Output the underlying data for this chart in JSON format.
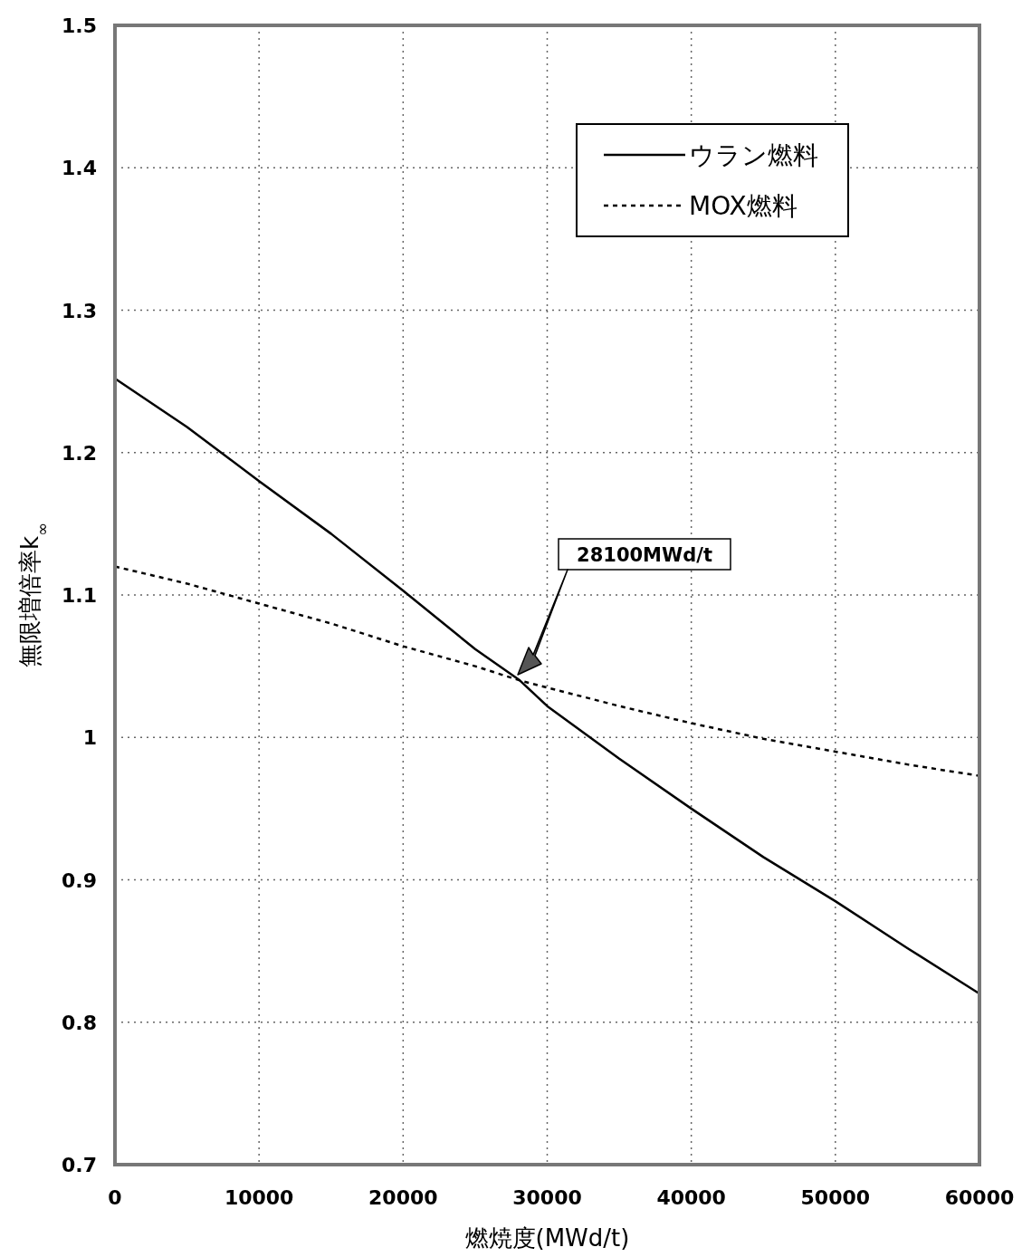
{
  "chart_data": {
    "type": "line",
    "xlabel": "燃焼度(MWd/t)",
    "ylabel": "無限増倍率k$_{∞}$",
    "xlim": [
      0,
      60000
    ],
    "ylim": [
      0.7,
      1.5
    ],
    "xticks": [
      0,
      10000,
      20000,
      30000,
      40000,
      50000,
      60000
    ],
    "yticks": [
      0.7,
      0.8,
      0.9,
      1,
      1.1,
      1.2,
      1.3,
      1.4,
      1.5
    ],
    "grid": true,
    "legend": "top right",
    "annotations": [
      "28100MWd/t"
    ],
    "series": [
      {
        "name": "ウラン燃料",
        "color": "#000000",
        "line_style": "solid",
        "x": [
          0,
          5000,
          10000,
          15000,
          20000,
          25000,
          28100,
          30000,
          35000,
          40000,
          45000,
          50000,
          55000,
          60000
        ],
        "values": [
          1.252,
          1.218,
          1.18,
          1.143,
          1.103,
          1.062,
          1.04,
          1.022,
          0.985,
          0.95,
          0.916,
          0.885,
          0.852,
          0.82
        ]
      },
      {
        "name": "MOX燃料",
        "color": "#000000",
        "line_style": "dashed",
        "x": [
          0,
          5000,
          10000,
          15000,
          20000,
          25000,
          28100,
          30000,
          35000,
          40000,
          45000,
          50000,
          55000,
          60000
        ],
        "values": [
          1.12,
          1.108,
          1.094,
          1.08,
          1.064,
          1.05,
          1.04,
          1.035,
          1.022,
          1.01,
          0.999,
          0.99,
          0.981,
          0.973
        ]
      }
    ]
  }
}
